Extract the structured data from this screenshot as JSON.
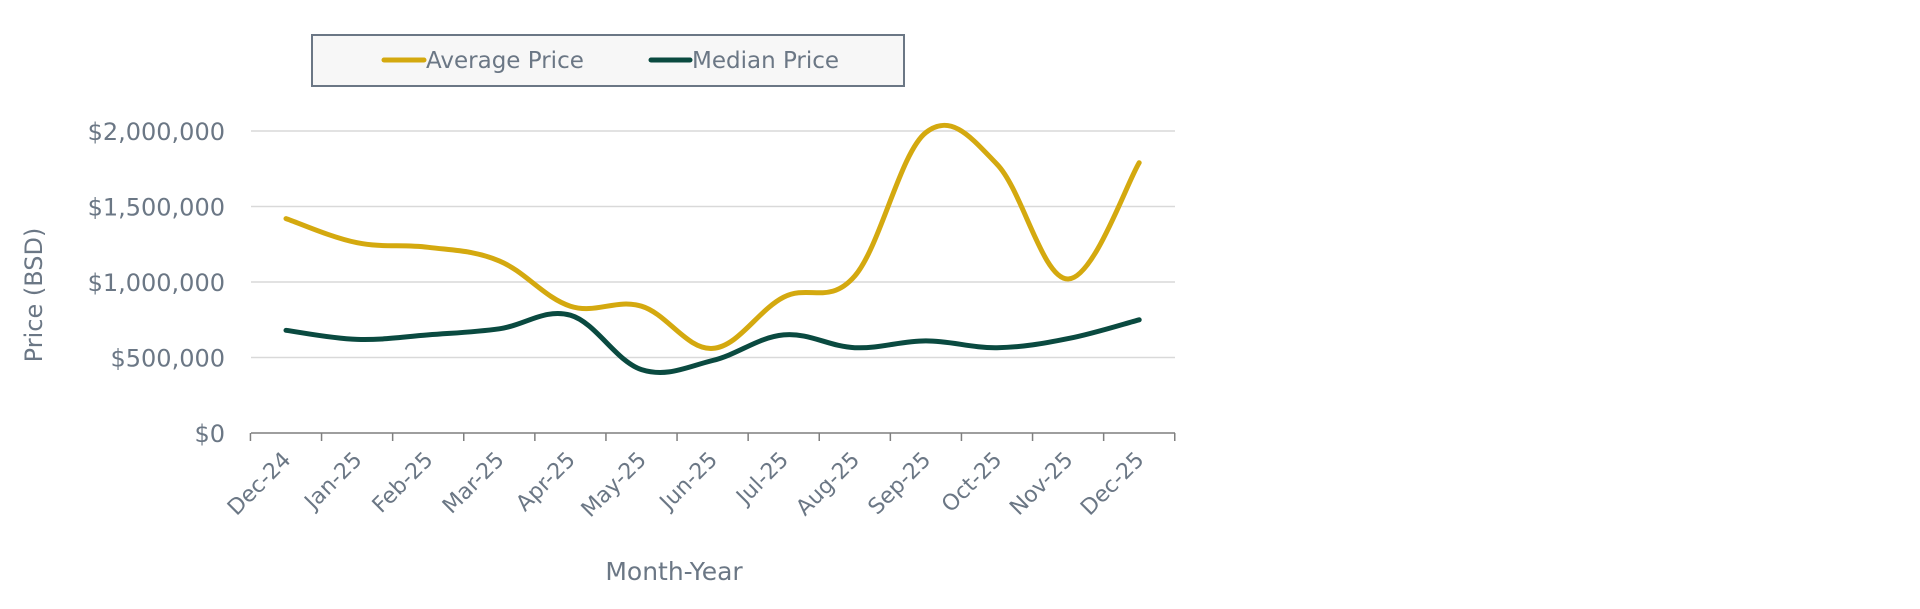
{
  "chart_data": {
    "type": "line",
    "title": "",
    "xlabel": "Month-Year",
    "ylabel": "Price (BSD)",
    "categories": [
      "Dec-24",
      "Jan-25",
      "Feb-25",
      "Mar-25",
      "Apr-25",
      "May-25",
      "Jun-25",
      "Jul-25",
      "Aug-25",
      "Sep-25",
      "Oct-25",
      "Nov-25",
      "Dec-25"
    ],
    "ylim": [
      0,
      2000000
    ],
    "yticks": [
      0,
      500000,
      1000000,
      1500000,
      2000000
    ],
    "ytick_labels": [
      "$0",
      "$500,000",
      "$1,000,000",
      "$1,500,000",
      "$2,000,000"
    ],
    "grid": true,
    "legend_position": "top",
    "series": [
      {
        "name": "Average Price",
        "color": "#d4a90f",
        "values": [
          1420000,
          1260000,
          1230000,
          1140000,
          840000,
          840000,
          560000,
          900000,
          1040000,
          1990000,
          1780000,
          1020000,
          1790000
        ]
      },
      {
        "name": "Median Price",
        "color": "#0a4a40",
        "values": [
          680000,
          620000,
          650000,
          690000,
          780000,
          420000,
          480000,
          650000,
          565000,
          610000,
          565000,
          625000,
          750000
        ]
      }
    ]
  },
  "colors": {
    "axis_text": "#6b7785",
    "gridline": "#d9d9d9",
    "axis_line": "#7f7f7f",
    "legend_border": "#6b7785",
    "legend_fill": "#f7f7f7"
  }
}
